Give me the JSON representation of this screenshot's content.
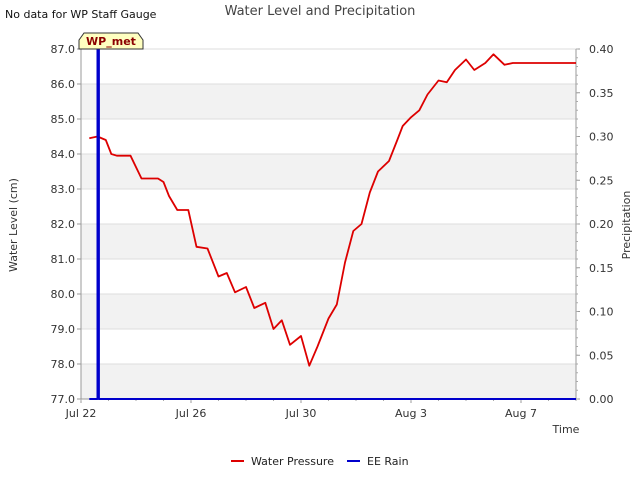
{
  "chart_data": {
    "type": "line",
    "title": "Water Level and Precipitation",
    "note": "No data for WP Staff Gauge",
    "xlabel": "Time",
    "ylabel_left": "Water Level (cm)",
    "ylabel_right": "Precipitation",
    "station_tag": "WP_met",
    "x_ticks": [
      "Jul 22",
      "Jul 26",
      "Jul 30",
      "Aug 3",
      "Aug 7"
    ],
    "x_tick_days": [
      0,
      4,
      8,
      12,
      16
    ],
    "x_range_days": [
      0,
      18
    ],
    "ylim_left": [
      77.0,
      87.0
    ],
    "ylim_right": [
      0.0,
      0.4
    ],
    "y_left_ticks": [
      "77.0",
      "78.0",
      "79.0",
      "80.0",
      "81.0",
      "82.0",
      "83.0",
      "84.0",
      "85.0",
      "86.0",
      "87.0"
    ],
    "y_right_ticks": [
      "0.00",
      "0.05",
      "0.10",
      "0.15",
      "0.20",
      "0.25",
      "0.30",
      "0.35",
      "0.40"
    ],
    "grid": "horizontal bands",
    "legend_position": "bottom",
    "colors": {
      "water": "#dd0000",
      "rain": "#0000cc",
      "band": "#f2f2f2",
      "tag_bg": "#ffffc0"
    },
    "series": [
      {
        "name": "Water Pressure",
        "axis": "left",
        "x": [
          0.3,
          0.6,
          0.9,
          1.1,
          1.3,
          1.5,
          1.8,
          2.2,
          2.8,
          3.0,
          3.2,
          3.5,
          3.9,
          4.2,
          4.6,
          5.0,
          5.3,
          5.6,
          6.0,
          6.3,
          6.7,
          7.0,
          7.3,
          7.6,
          8.0,
          8.3,
          8.6,
          9.0,
          9.3,
          9.6,
          9.9,
          10.2,
          10.5,
          10.8,
          11.2,
          11.5,
          11.7,
          12.0,
          12.3,
          12.6,
          13.0,
          13.3,
          13.6,
          14.0,
          14.3,
          14.7,
          15.0,
          15.4,
          15.7,
          16.0,
          16.3,
          16.6,
          16.9,
          17.1,
          17.3,
          17.5,
          17.6,
          17.8,
          18.0
        ],
        "values": [
          84.45,
          84.5,
          84.4,
          84.0,
          83.95,
          83.95,
          83.95,
          83.3,
          83.3,
          83.2,
          82.8,
          82.4,
          82.4,
          81.35,
          81.3,
          80.5,
          80.6,
          80.05,
          80.2,
          79.6,
          79.75,
          79.0,
          79.25,
          78.55,
          78.8,
          77.95,
          78.5,
          79.3,
          79.7,
          80.9,
          81.8,
          82.0,
          82.9,
          83.5,
          83.8,
          84.4,
          84.8,
          85.05,
          85.25,
          85.7,
          86.1,
          86.05,
          86.4,
          86.7,
          86.4,
          86.6,
          86.85,
          86.55,
          86.6,
          86.6,
          86.6,
          86.6,
          86.6,
          86.6,
          86.6,
          86.6,
          86.6,
          86.6,
          86.6
        ]
      },
      {
        "name": "EE Rain",
        "axis": "right",
        "x": [
          0.3,
          0.6,
          0.6,
          0.65,
          0.65,
          18.0
        ],
        "values": [
          0.0,
          0.0,
          0.4,
          0.4,
          0.0,
          0.0
        ]
      }
    ]
  }
}
